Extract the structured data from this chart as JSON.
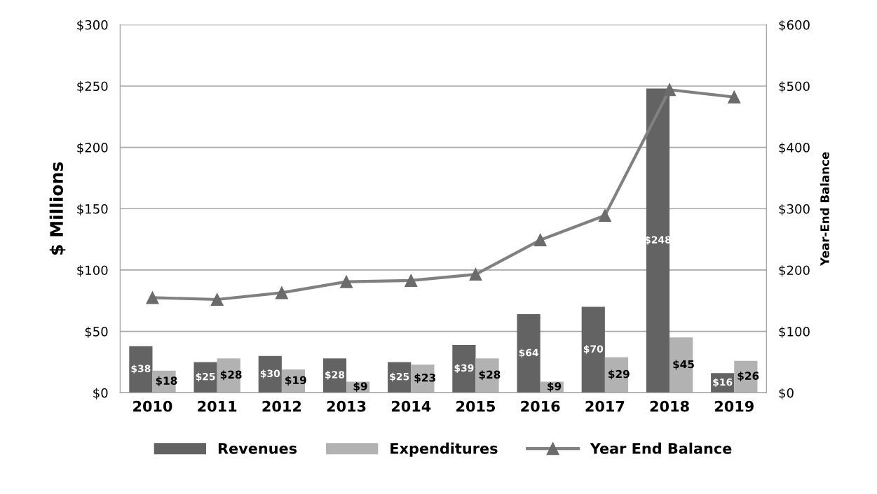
{
  "chart_data": {
    "type": "bar",
    "categories": [
      "2010",
      "2011",
      "2012",
      "2013",
      "2014",
      "2015",
      "2016",
      "2017",
      "2018",
      "2019"
    ],
    "ylabel": "$ Millions",
    "y2label": "Year-End Balance",
    "ylim": [
      0,
      300
    ],
    "yticks": [
      {
        "value": 0,
        "label": "$0"
      },
      {
        "value": 50,
        "label": "$50"
      },
      {
        "value": 100,
        "label": "$100"
      },
      {
        "value": 150,
        "label": "$150"
      },
      {
        "value": 200,
        "label": "$200"
      },
      {
        "value": 250,
        "label": "$250"
      },
      {
        "value": 300,
        "label": "$300"
      }
    ],
    "y2lim": [
      0,
      600
    ],
    "y2ticks": [
      {
        "value": 0,
        "label": "$0"
      },
      {
        "value": 100,
        "label": "$100"
      },
      {
        "value": 200,
        "label": "$200"
      },
      {
        "value": 300,
        "label": "$300"
      },
      {
        "value": 400,
        "label": "$400"
      },
      {
        "value": 500,
        "label": "$500"
      },
      {
        "value": 600,
        "label": "$600"
      }
    ],
    "grid": "y",
    "legend": "bottom",
    "series": [
      {
        "name": "Revenues",
        "color": "#636363",
        "values": [
          38,
          25,
          30,
          28,
          25,
          39,
          64,
          70,
          248,
          16
        ],
        "value_labels": [
          "$38",
          "$25",
          "$30",
          "$28",
          "$25",
          "$39",
          "$64",
          "$70",
          "$248",
          "$16"
        ]
      },
      {
        "name": "Expenditures",
        "color": "#b2b2b2",
        "values": [
          18,
          28,
          19,
          9,
          23,
          28,
          9,
          29,
          45,
          26
        ],
        "value_labels": [
          "$18",
          "$28",
          "$19",
          "$9",
          "$23",
          "$28",
          "$9",
          "$29",
          "$45",
          "$26"
        ]
      },
      {
        "name": "Year End Balance",
        "type": "line",
        "axis": "y2",
        "color": "#808080",
        "marker": "triangle",
        "line_style": "solid",
        "values": [
          155,
          152,
          163,
          181,
          183,
          193,
          249,
          289,
          494,
          482
        ]
      }
    ]
  }
}
